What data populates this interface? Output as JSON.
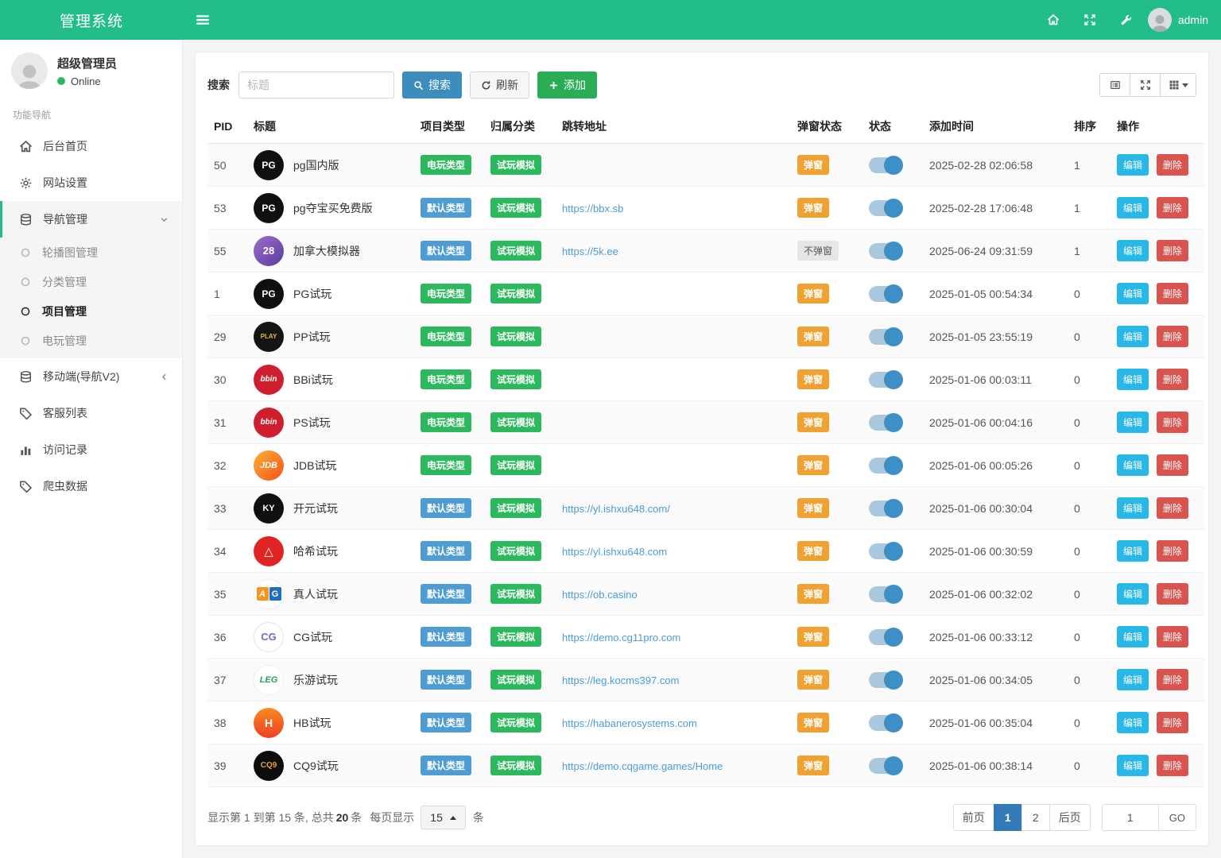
{
  "header": {
    "brand": "管理系统",
    "user": "admin"
  },
  "sidebar": {
    "profile": {
      "name": "超级管理员",
      "status": "Online"
    },
    "section": "功能导航",
    "items": [
      {
        "icon": "home",
        "label": "后台首页"
      },
      {
        "icon": "gears",
        "label": "网站设置"
      },
      {
        "icon": "stack",
        "label": "导航管理",
        "chevron": "down",
        "open": true,
        "children": [
          {
            "label": "轮播图管理",
            "active": false
          },
          {
            "label": "分类管理",
            "active": false
          },
          {
            "label": "项目管理",
            "active": true
          },
          {
            "label": "电玩管理",
            "active": false
          }
        ]
      },
      {
        "icon": "stack",
        "label": "移动端(导航V2)",
        "chevron": "left"
      },
      {
        "icon": "tag",
        "label": "客服列表"
      },
      {
        "icon": "chart",
        "label": "访问记录"
      },
      {
        "icon": "tag",
        "label": "爬虫数据"
      }
    ]
  },
  "toolbar": {
    "search_label": "搜索",
    "search_placeholder": "标题",
    "search_btn": "搜索",
    "refresh_btn": "刷新",
    "add_btn": "添加"
  },
  "table": {
    "columns": [
      "PID",
      "标题",
      "项目类型",
      "归属分类",
      "跳转地址",
      "弹窗状态",
      "状态",
      "添加时间",
      "排序",
      "操作"
    ],
    "edit_btn": "编辑",
    "delete_btn": "删除",
    "rows": [
      {
        "pid": "50",
        "title": "pg国内版",
        "logo": {
          "text": "PG",
          "bg": "#101010",
          "color": "#ffffff"
        },
        "type": "电玩类型",
        "type_style": "green",
        "category": "试玩模拟",
        "url": "",
        "popup": "弹窗",
        "popup_style": "orange",
        "status_on": true,
        "time": "2025-02-28 02:06:58",
        "sort": "1"
      },
      {
        "pid": "53",
        "title": "pg夺宝买免费版",
        "logo": {
          "text": "PG",
          "bg": "#101010",
          "color": "#ffffff"
        },
        "type": "默认类型",
        "type_style": "blue",
        "category": "试玩模拟",
        "url": "https://bbx.sb",
        "popup": "弹窗",
        "popup_style": "orange",
        "status_on": true,
        "time": "2025-02-28 17:06:48",
        "sort": "1"
      },
      {
        "pid": "55",
        "title": "加拿大模拟器",
        "logo": {
          "text": "28",
          "bg": "linear-gradient(135deg,#9a6ecb,#5d3a9e)",
          "color": "#ffffff",
          "size": "13"
        },
        "type": "默认类型",
        "type_style": "blue",
        "category": "试玩模拟",
        "url": "https://5k.ee",
        "popup": "不弹窗",
        "popup_style": "gray",
        "status_on": true,
        "time": "2025-06-24 09:31:59",
        "sort": "1"
      },
      {
        "pid": "1",
        "title": "PG试玩",
        "logo": {
          "text": "PG",
          "bg": "#101010",
          "color": "#ffffff"
        },
        "type": "电玩类型",
        "type_style": "green",
        "category": "试玩模拟",
        "url": "",
        "popup": "弹窗",
        "popup_style": "orange",
        "status_on": true,
        "time": "2025-01-05 00:54:34",
        "sort": "0"
      },
      {
        "pid": "29",
        "title": "PP试玩",
        "logo": {
          "text": "PLAY",
          "bg": "#141414",
          "color": "#e8b93c",
          "size": "8"
        },
        "type": "电玩类型",
        "type_style": "green",
        "category": "试玩模拟",
        "url": "",
        "popup": "弹窗",
        "popup_style": "orange",
        "status_on": true,
        "time": "2025-01-05 23:55:19",
        "sort": "0"
      },
      {
        "pid": "30",
        "title": "BBi试玩",
        "logo": {
          "text": "bbin",
          "bg": "#cf1f2f",
          "color": "#ffffff",
          "size": "10",
          "italic": true
        },
        "type": "电玩类型",
        "type_style": "green",
        "category": "试玩模拟",
        "url": "",
        "popup": "弹窗",
        "popup_style": "orange",
        "status_on": true,
        "time": "2025-01-06 00:03:11",
        "sort": "0"
      },
      {
        "pid": "31",
        "title": "PS试玩",
        "logo": {
          "text": "bbin",
          "bg": "#cf1f2f",
          "color": "#ffffff",
          "size": "10",
          "italic": true
        },
        "type": "电玩类型",
        "type_style": "green",
        "category": "试玩模拟",
        "url": "",
        "popup": "弹窗",
        "popup_style": "orange",
        "status_on": true,
        "time": "2025-01-06 00:04:16",
        "sort": "0"
      },
      {
        "pid": "32",
        "title": "JDB试玩",
        "logo": {
          "text": "JDB",
          "bg": "linear-gradient(135deg,#fbb12f,#f4511e)",
          "color": "#ffffff",
          "size": "11",
          "italic": true
        },
        "type": "电玩类型",
        "type_style": "green",
        "category": "试玩模拟",
        "url": "",
        "popup": "弹窗",
        "popup_style": "orange",
        "status_on": true,
        "time": "2025-01-06 00:05:26",
        "sort": "0"
      },
      {
        "pid": "33",
        "title": "开元试玩",
        "logo": {
          "text": "KY",
          "bg": "#101010",
          "color": "#ffffff",
          "size": "11"
        },
        "type": "默认类型",
        "type_style": "blue",
        "category": "试玩模拟",
        "url": "https://yl.ishxu648.com/",
        "popup": "弹窗",
        "popup_style": "orange",
        "status_on": true,
        "time": "2025-01-06 00:30:04",
        "sort": "0"
      },
      {
        "pid": "34",
        "title": "哈希试玩",
        "logo": {
          "text": "△",
          "bg": "#e02424",
          "color": "#ffffff",
          "size": "15"
        },
        "type": "默认类型",
        "type_style": "blue",
        "category": "试玩模拟",
        "url": "https://yl.ishxu648.com",
        "popup": "弹窗",
        "popup_style": "orange",
        "status_on": true,
        "time": "2025-01-06 00:30:59",
        "sort": "0"
      },
      {
        "pid": "35",
        "title": "真人试玩",
        "logo": {
          "kind": "duo",
          "chars": [
            "A",
            "G"
          ],
          "colors": [
            "#f7941d",
            "#1d6ec1"
          ]
        },
        "type": "默认类型",
        "type_style": "blue",
        "category": "试玩模拟",
        "url": "https://ob.casino",
        "popup": "弹窗",
        "popup_style": "orange",
        "status_on": true,
        "time": "2025-01-06 00:32:02",
        "sort": "0"
      },
      {
        "pid": "36",
        "title": "CG试玩",
        "logo": {
          "text": "CG",
          "bg": "#ffffff",
          "color": "#7668c5",
          "size": "13",
          "border": "#e4e4e6"
        },
        "type": "默认类型",
        "type_style": "blue",
        "category": "试玩模拟",
        "url": "https://demo.cg11pro.com",
        "popup": "弹窗",
        "popup_style": "orange",
        "status_on": true,
        "time": "2025-01-06 00:33:12",
        "sort": "0"
      },
      {
        "pid": "37",
        "title": "乐游试玩",
        "logo": {
          "text": "LEG",
          "bg": "#ffffff",
          "color": "#21a15c",
          "size": "11",
          "border": "#efefef",
          "italic": true
        },
        "type": "默认类型",
        "type_style": "blue",
        "category": "试玩模拟",
        "url": "https://leg.kocms397.com",
        "popup": "弹窗",
        "popup_style": "orange",
        "status_on": true,
        "time": "2025-01-06 00:34:05",
        "sort": "0"
      },
      {
        "pid": "38",
        "title": "HB试玩",
        "logo": {
          "text": "H",
          "bg": "linear-gradient(180deg,#f68b1f,#ef4023)",
          "color": "#ffffff",
          "size": "14"
        },
        "type": "默认类型",
        "type_style": "blue",
        "category": "试玩模拟",
        "url": "https://habanerosystems.com",
        "popup": "弹窗",
        "popup_style": "orange",
        "status_on": true,
        "time": "2025-01-06 00:35:04",
        "sort": "0"
      },
      {
        "pid": "39",
        "title": "CQ9试玩",
        "logo": {
          "text": "CQ9",
          "bg": "#0d0d0d",
          "color": "#e2a23b",
          "size": "10"
        },
        "type": "默认类型",
        "type_style": "blue",
        "category": "试玩模拟",
        "url": "https://demo.cqgame.games/Home",
        "popup": "弹窗",
        "popup_style": "orange",
        "status_on": true,
        "time": "2025-01-06 00:38:14",
        "sort": "0"
      }
    ]
  },
  "footer": {
    "info_prefix": "显示第 1 到第 15 条, 总共",
    "info_total": "20",
    "info_suffix": "条",
    "per_page_label": "每页显示",
    "per_page_value": "15",
    "per_page_unit": "条",
    "pages": [
      "前页",
      "1",
      "2",
      "后页"
    ],
    "active_page": "1",
    "jump_value": "1",
    "go_label": "GO"
  },
  "colors": {
    "accent_green": "#23bd8c",
    "badge_green": "#2cb85c",
    "badge_blue": "#4d9cd3",
    "badge_orange": "#f0a131",
    "edit_cyan": "#28b8e8",
    "delete_red": "#d9534f",
    "primary_blue": "#3c8dbc",
    "pager_active": "#337ab7"
  }
}
